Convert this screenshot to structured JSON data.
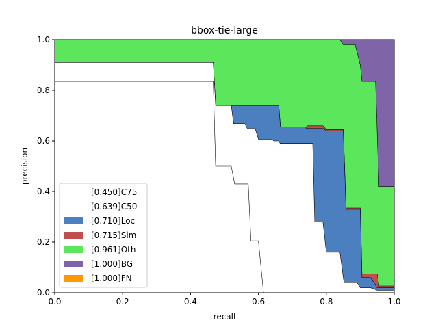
{
  "chart_data": {
    "type": "area",
    "title": "bbox-tie-large",
    "xlabel": "recall",
    "ylabel": "precision",
    "xlim": [
      0,
      1
    ],
    "ylim": [
      0,
      1
    ],
    "xticks": [
      "0.0",
      "0.2",
      "0.4",
      "0.6",
      "0.8",
      "1.0"
    ],
    "yticks": [
      "0.0",
      "0.2",
      "0.4",
      "0.6",
      "0.8",
      "1.0"
    ],
    "grid": false,
    "legend_position": "lower-left",
    "series": [
      {
        "name": "[0.450]C75",
        "color": "#ffffff",
        "points": [
          [
            0,
            0.835
          ],
          [
            0.467,
            0.835
          ],
          [
            0.474,
            0.5
          ],
          [
            0.52,
            0.5
          ],
          [
            0.53,
            0.43
          ],
          [
            0.57,
            0.43
          ],
          [
            0.578,
            0.205
          ],
          [
            0.6,
            0.205
          ],
          [
            0.615,
            0.0
          ],
          [
            1,
            0
          ]
        ]
      },
      {
        "name": "[0.639]C50",
        "color": "#ffffff",
        "points": [
          [
            0,
            0.91
          ],
          [
            0.467,
            0.91
          ],
          [
            0.474,
            0.74
          ],
          [
            0.52,
            0.74
          ],
          [
            0.527,
            0.668
          ],
          [
            0.56,
            0.668
          ],
          [
            0.567,
            0.65
          ],
          [
            0.59,
            0.65
          ],
          [
            0.6,
            0.607
          ],
          [
            0.64,
            0.607
          ],
          [
            0.645,
            0.6
          ],
          [
            0.66,
            0.6
          ],
          [
            0.664,
            0.59
          ],
          [
            0.76,
            0.59
          ],
          [
            0.766,
            0.28
          ],
          [
            0.79,
            0.28
          ],
          [
            0.8,
            0.16
          ],
          [
            0.84,
            0.16
          ],
          [
            0.852,
            0.04
          ],
          [
            0.89,
            0.04
          ],
          [
            0.9,
            0.02
          ],
          [
            0.93,
            0.02
          ],
          [
            0.95,
            0.01
          ],
          [
            1,
            0.01
          ]
        ]
      },
      {
        "name": "[0.710]Loc",
        "color": "#4c7fbf",
        "points": [
          [
            0,
            0.91
          ],
          [
            0.467,
            0.91
          ],
          [
            0.474,
            0.74
          ],
          [
            0.52,
            0.74
          ],
          [
            0.52,
            0.74
          ],
          [
            0.66,
            0.74
          ],
          [
            0.665,
            0.655
          ],
          [
            0.74,
            0.655
          ],
          [
            0.74,
            0.65
          ],
          [
            0.79,
            0.65
          ],
          [
            0.8,
            0.64
          ],
          [
            0.85,
            0.64
          ],
          [
            0.858,
            0.33
          ],
          [
            0.9,
            0.33
          ],
          [
            0.905,
            0.06
          ],
          [
            0.93,
            0.06
          ],
          [
            0.95,
            0.02
          ],
          [
            1,
            0.02
          ]
        ]
      },
      {
        "name": "[0.715]Sim",
        "color": "#c0504d",
        "points": [
          [
            0,
            0.91
          ],
          [
            0.467,
            0.91
          ],
          [
            0.474,
            0.74
          ],
          [
            0.66,
            0.74
          ],
          [
            0.665,
            0.655
          ],
          [
            0.74,
            0.655
          ],
          [
            0.745,
            0.66
          ],
          [
            0.79,
            0.66
          ],
          [
            0.8,
            0.645
          ],
          [
            0.85,
            0.645
          ],
          [
            0.858,
            0.335
          ],
          [
            0.9,
            0.335
          ],
          [
            0.905,
            0.075
          ],
          [
            0.95,
            0.075
          ],
          [
            0.955,
            0.027
          ],
          [
            1,
            0.027
          ]
        ]
      },
      {
        "name": "[0.961]Oth",
        "color": "#5ce65c",
        "points": [
          [
            0,
            1.0
          ],
          [
            0.84,
            1.0
          ],
          [
            0.85,
            0.98
          ],
          [
            0.885,
            0.98
          ],
          [
            0.9,
            0.9
          ],
          [
            0.905,
            0.835
          ],
          [
            0.945,
            0.835
          ],
          [
            0.955,
            0.42
          ],
          [
            1,
            0.42
          ]
        ]
      },
      {
        "name": "[1.000]BG",
        "color": "#7f64a8",
        "points": [
          [
            0,
            1.0
          ],
          [
            1,
            1.0
          ]
        ]
      },
      {
        "name": "[1.000]FN",
        "color": "#ff9900",
        "points": [
          [
            0,
            1.0
          ],
          [
            1,
            1.0
          ]
        ]
      }
    ]
  }
}
